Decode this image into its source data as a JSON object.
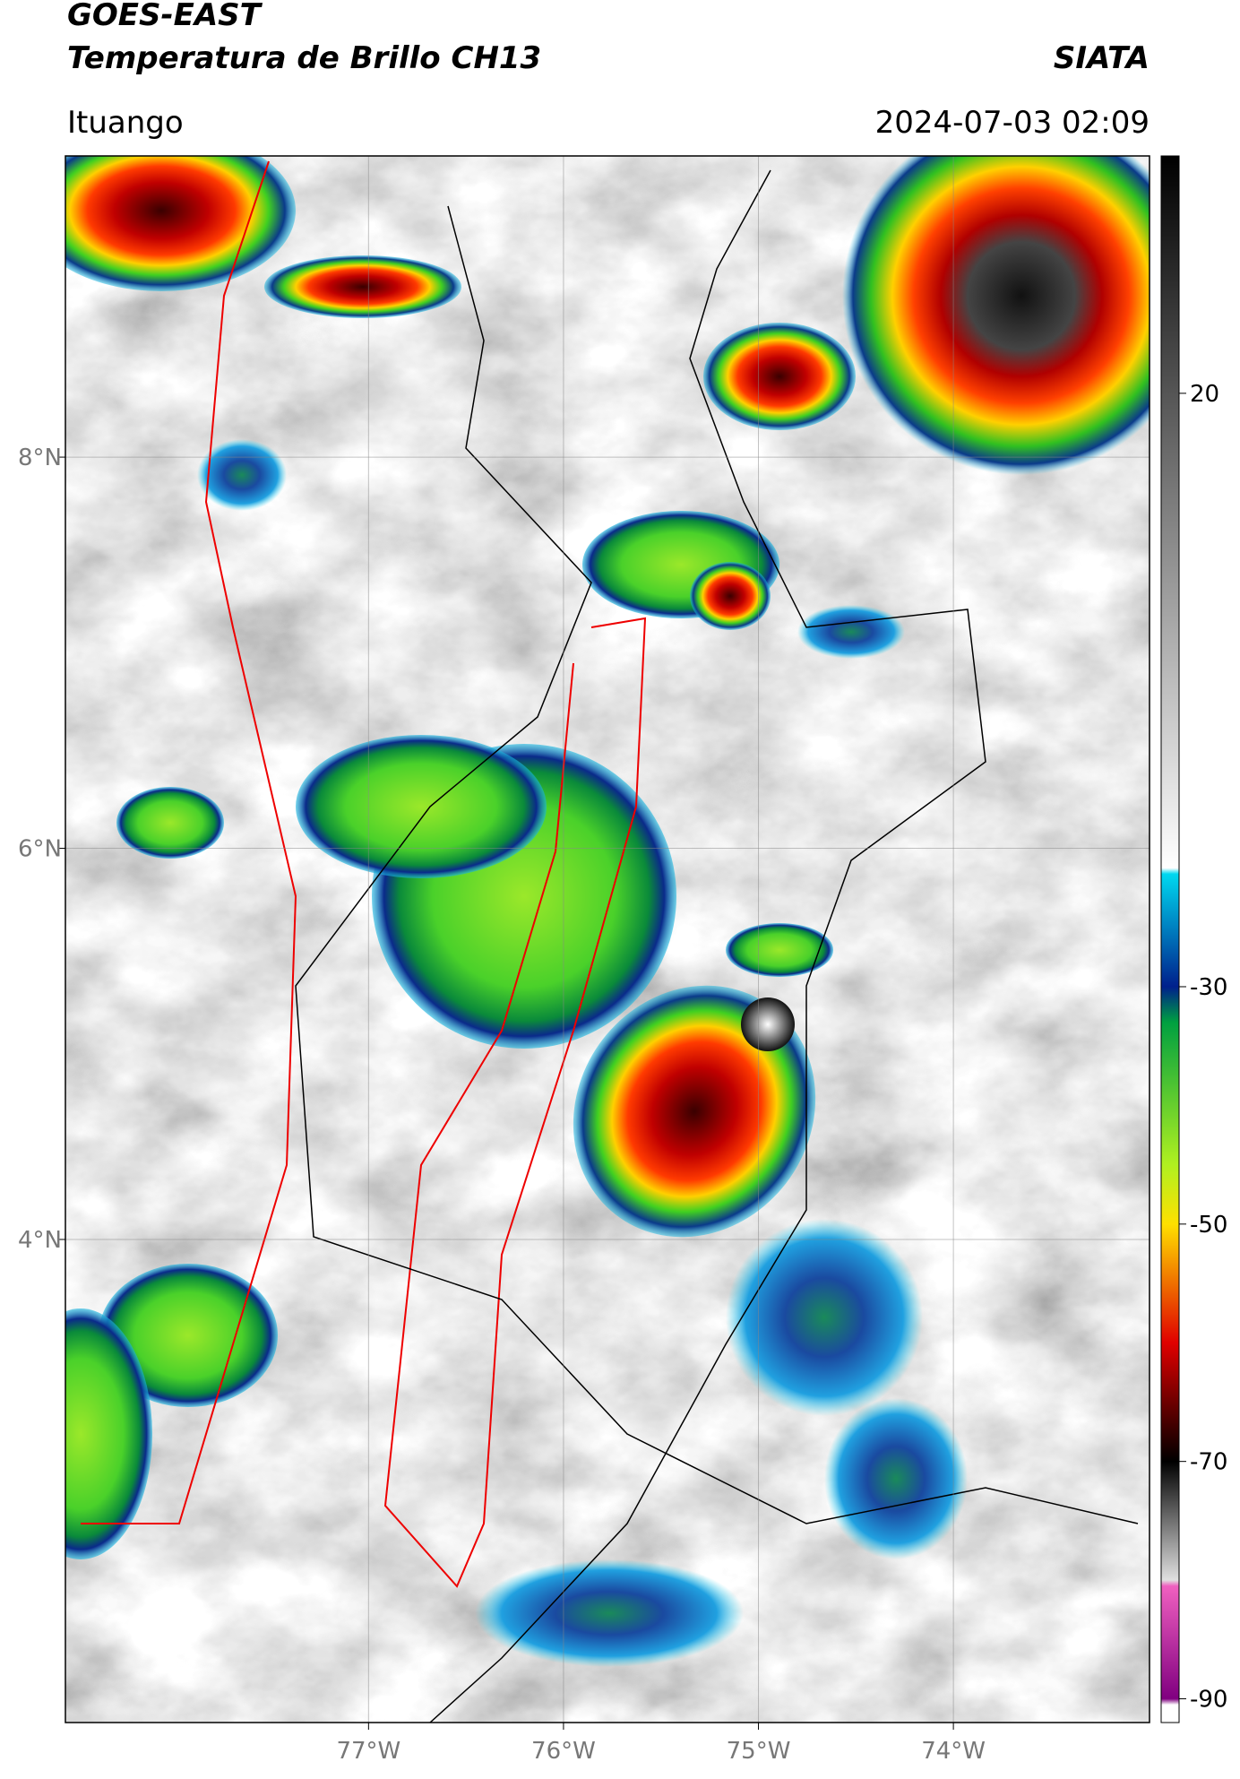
{
  "header": {
    "title": "GOES-EAST",
    "subtitle": "Temperatura de Brillo CH13",
    "source": "SIATA",
    "location": "Ituango",
    "datetime": "2024-07-03 02:09"
  },
  "map": {
    "xlim": [
      -78.555,
      -72.994
    ],
    "ylim": [
      1.53,
      9.54
    ],
    "xticks": [
      {
        "value": -77,
        "label": "77°W"
      },
      {
        "value": -76,
        "label": "76°W"
      },
      {
        "value": -75,
        "label": "75°W"
      },
      {
        "value": -74,
        "label": "74°W"
      }
    ],
    "yticks": [
      {
        "value": 8,
        "label": "8°N"
      },
      {
        "value": 6,
        "label": "6°N"
      },
      {
        "value": 4,
        "label": "4°N"
      }
    ],
    "grid": true
  },
  "colorbar": {
    "lim": [
      -92,
      40
    ],
    "ticks": [
      20,
      -30,
      -50,
      -70,
      -90
    ],
    "stops": [
      {
        "value": 40,
        "color": "#000000"
      },
      {
        "value": -20,
        "color": "#ffffff"
      },
      {
        "value": -20.5,
        "color": "#00d8f0"
      },
      {
        "value": -30,
        "color": "#00208c"
      },
      {
        "value": -33,
        "color": "#00a040"
      },
      {
        "value": -45,
        "color": "#b0f020"
      },
      {
        "value": -50,
        "color": "#ffe000"
      },
      {
        "value": -60,
        "color": "#e00000"
      },
      {
        "value": -67,
        "color": "#400000"
      },
      {
        "value": -70,
        "color": "#000000"
      },
      {
        "value": -80,
        "color": "#e0e0e0"
      },
      {
        "value": -80.5,
        "color": "#f060c0"
      },
      {
        "value": -90,
        "color": "#800080"
      },
      {
        "value": -90.5,
        "color": "#ffffff"
      }
    ]
  }
}
